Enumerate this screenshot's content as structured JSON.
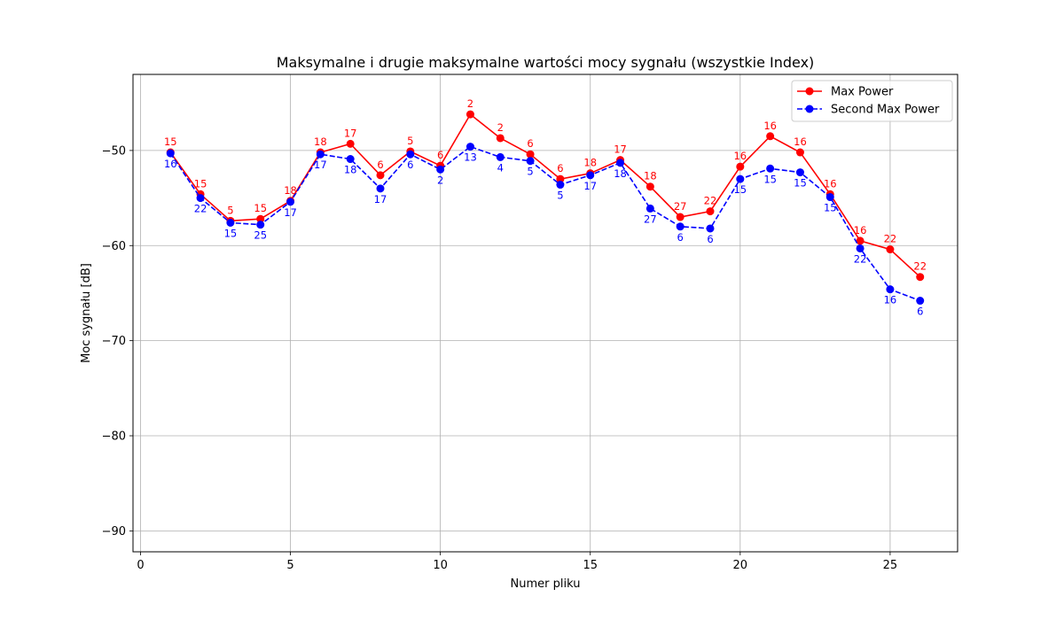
{
  "chart_data": {
    "type": "line",
    "title": "Maksymalne i drugie maksymalne wartości mocy sygnału (wszystkie Index)",
    "xlabel": "Numer pliku",
    "ylabel": "Moc sygnału [dB]",
    "xlim": [
      -0.25,
      27.25
    ],
    "ylim": [
      -92.2,
      -42.0
    ],
    "xticks": [
      0,
      5,
      10,
      15,
      20,
      25
    ],
    "yticks": [
      -90,
      -80,
      -70,
      -60,
      -50
    ],
    "grid": true,
    "legend_position": "top-right",
    "x": [
      1,
      2,
      3,
      4,
      5,
      6,
      7,
      8,
      9,
      10,
      11,
      12,
      13,
      14,
      15,
      16,
      17,
      18,
      19,
      20,
      21,
      22,
      23,
      24,
      25,
      26
    ],
    "series": [
      {
        "name": "Max Power",
        "color": "#ff0000",
        "style": "solid",
        "label_position": "above",
        "values": [
          -50.2,
          -54.6,
          -57.4,
          -57.2,
          -55.3,
          -50.2,
          -49.3,
          -52.6,
          -50.1,
          -51.6,
          -46.2,
          -48.7,
          -50.4,
          -53.0,
          -52.4,
          -51.0,
          -53.8,
          -57.0,
          -56.4,
          -51.7,
          -48.5,
          -50.2,
          -54.6,
          -59.5,
          -60.4,
          -63.3
        ],
        "labels": [
          "15",
          "15",
          "5",
          "15",
          "18",
          "18",
          "17",
          "6",
          "5",
          "6",
          "2",
          "2",
          "6",
          "6",
          "18",
          "17",
          "18",
          "27",
          "22",
          "16",
          "16",
          "16",
          "16",
          "16",
          "22",
          "22"
        ]
      },
      {
        "name": "Second Max Power",
        "color": "#0000ff",
        "style": "dashed",
        "label_position": "below",
        "values": [
          -50.3,
          -55.0,
          -57.6,
          -57.8,
          -55.4,
          -50.4,
          -50.9,
          -54.0,
          -50.4,
          -52.0,
          -49.6,
          -50.7,
          -51.1,
          -53.6,
          -52.6,
          -51.3,
          -56.1,
          -58.0,
          -58.2,
          -53.0,
          -51.9,
          -52.3,
          -54.9,
          -60.3,
          -64.6,
          -65.8
        ],
        "labels": [
          "16",
          "22",
          "15",
          "25",
          "17",
          "17",
          "18",
          "17",
          "6",
          "2",
          "13",
          "4",
          "5",
          "5",
          "17",
          "18",
          "27",
          "6",
          "6",
          "15",
          "15",
          "15",
          "15",
          "22",
          "16",
          "6"
        ]
      }
    ]
  }
}
